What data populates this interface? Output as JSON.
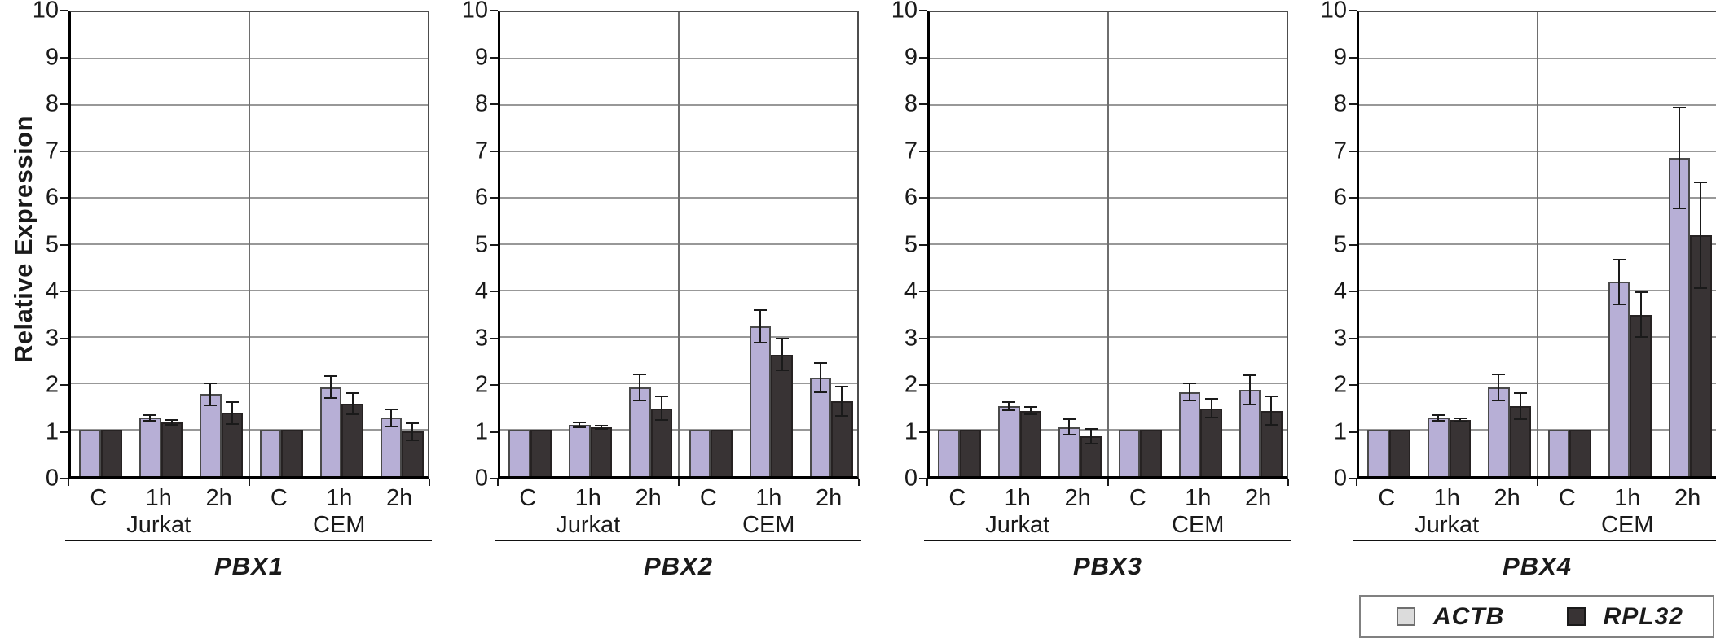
{
  "chart_data": {
    "type": "bar",
    "ylabel": "Relative Expression",
    "ylim": [
      0,
      10
    ],
    "yticks": [
      0,
      1,
      2,
      3,
      4,
      5,
      6,
      7,
      8,
      9,
      10
    ],
    "grid": "horizontal",
    "groups": [
      "Jurkat",
      "CEM"
    ],
    "conditions": [
      "C",
      "1h",
      "2h"
    ],
    "series_names": [
      "ACTB",
      "RPL32"
    ],
    "colors": {
      "actb_bar": "#b7afd6",
      "rpl32_bar": "#383334",
      "actb_legend_swatch": "#dcdcdc",
      "gridline": "#989898",
      "error_bar": "#1a1a1a"
    },
    "panels": [
      {
        "gene": "PBX1",
        "values": {
          "Jurkat": {
            "ACTB": [
              1.0,
              1.25,
              1.75
            ],
            "ACTB_err": [
              0,
              0.08,
              0.25
            ],
            "RPL32": [
              1.0,
              1.15,
              1.35
            ],
            "RPL32_err": [
              0,
              0.07,
              0.25
            ]
          },
          "CEM": {
            "ACTB": [
              1.0,
              1.9,
              1.25
            ],
            "ACTB_err": [
              0,
              0.25,
              0.2
            ],
            "RPL32": [
              1.0,
              1.55,
              0.95
            ],
            "RPL32_err": [
              0,
              0.25,
              0.2
            ]
          }
        }
      },
      {
        "gene": "PBX2",
        "values": {
          "Jurkat": {
            "ACTB": [
              1.0,
              1.1,
              1.9
            ],
            "ACTB_err": [
              0,
              0.07,
              0.3
            ],
            "RPL32": [
              1.0,
              1.05,
              1.45
            ],
            "RPL32_err": [
              0,
              0.05,
              0.27
            ]
          },
          "CEM": {
            "ACTB": [
              1.0,
              3.2,
              2.1
            ],
            "ACTB_err": [
              0,
              0.36,
              0.33
            ],
            "RPL32": [
              1.0,
              2.6,
              1.6
            ],
            "RPL32_err": [
              0,
              0.35,
              0.33
            ]
          }
        }
      },
      {
        "gene": "PBX3",
        "values": {
          "Jurkat": {
            "ACTB": [
              1.0,
              1.5,
              1.05
            ],
            "ACTB_err": [
              0,
              0.1,
              0.18
            ],
            "RPL32": [
              1.0,
              1.4,
              0.85
            ],
            "RPL32_err": [
              0,
              0.1,
              0.18
            ]
          },
          "CEM": {
            "ACTB": [
              1.0,
              1.8,
              1.85
            ],
            "ACTB_err": [
              0,
              0.2,
              0.33
            ],
            "RPL32": [
              1.0,
              1.45,
              1.4
            ],
            "RPL32_err": [
              0,
              0.22,
              0.33
            ]
          }
        }
      },
      {
        "gene": "PBX4",
        "values": {
          "Jurkat": {
            "ACTB": [
              1.0,
              1.25,
              1.9
            ],
            "ACTB_err": [
              0,
              0.08,
              0.3
            ],
            "RPL32": [
              1.0,
              1.2,
              1.5
            ],
            "RPL32_err": [
              0,
              0.06,
              0.3
            ]
          },
          "CEM": {
            "ACTB": [
              1.0,
              4.15,
              6.8
            ],
            "ACTB_err": [
              0,
              0.5,
              1.1
            ],
            "RPL32": [
              1.0,
              3.45,
              5.15
            ],
            "RPL32_err": [
              0,
              0.5,
              1.15
            ]
          }
        }
      }
    ],
    "legend": {
      "entries": [
        {
          "label": "ACTB",
          "swatch": "#dcdcdc"
        },
        {
          "label": "RPL32",
          "swatch": "#383334"
        }
      ]
    }
  }
}
